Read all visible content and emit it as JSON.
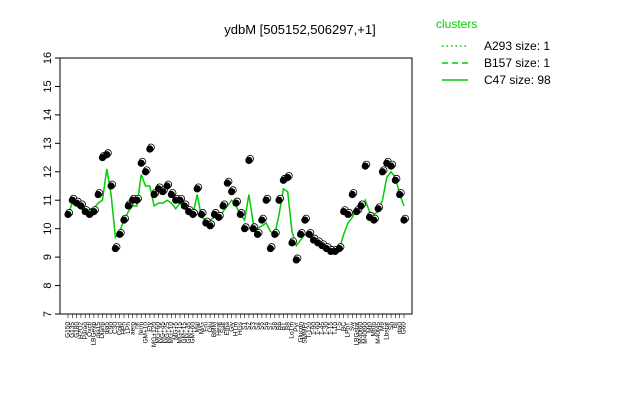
{
  "chart_data": {
    "type": "line",
    "title": "ydbM [505152,506297,+1]",
    "xlabel": "",
    "ylabel": "",
    "ylim": [
      7,
      16
    ],
    "yticks": [
      7,
      8,
      9,
      10,
      11,
      12,
      13,
      14,
      15,
      16
    ],
    "grid": false,
    "legend": {
      "placement": "top-right",
      "title": "clusters",
      "entries": [
        {
          "label": "A293 size: 1",
          "style": "dotted",
          "color": "#00cc00"
        },
        {
          "label": "B157 size: 1",
          "style": "dashed",
          "color": "#00cc00"
        },
        {
          "label": "C47 size: 98",
          "style": "solid",
          "color": "#00cc00"
        }
      ]
    },
    "categories": [
      "G150",
      "G135",
      "G180",
      "H2O2",
      "Paraq",
      "Oxctl",
      "LBGexp",
      "dia15",
      "Diami",
      "dia5",
      "C90",
      "C30",
      "Cold",
      "HPh",
      "LPh",
      "aero",
      "nit",
      "ferm",
      "GM+10",
      "Ery",
      "MG+120",
      "MG+60",
      "MG+45",
      "MG+25",
      "MG+10",
      "MG+5",
      "MG+15",
      "GM+15",
      "GM+45",
      "GM+60",
      "Mal",
      "M/G",
      "Fru",
      "Glu",
      "BMM",
      "Heat",
      "Salt",
      "Etha",
      "Gly",
      "HTm",
      "HGs",
      "S1",
      "S2",
      "S3",
      "S4",
      "S5",
      "S6",
      "S7",
      "S8",
      "B6",
      "BT",
      "B8",
      "LoTm",
      "Pyr",
      "Glucon",
      "SMMPr",
      "T-120",
      "T-90",
      "T-60",
      "T-45",
      "T-30",
      "T-15",
      "T-10",
      "T-5",
      "BC",
      "LPhT",
      "Sw",
      "LBGstat",
      "M40t60",
      "M40t90",
      "Mt0",
      "Mt0n",
      "M40t45",
      "M9",
      "Lbstat",
      "Sh",
      "BI",
      "dia0",
      "G60"
    ],
    "series": [
      {
        "name": "C47 size: 98",
        "type": "line",
        "color": "#00cc00",
        "values": [
          10.5,
          10.9,
          10.8,
          10.7,
          10.6,
          10.7,
          10.7,
          10.9,
          11.0,
          12.1,
          11.2,
          9.7,
          9.9,
          10.3,
          10.6,
          10.8,
          10.8,
          11.9,
          11.5,
          11.5,
          10.8,
          10.9,
          10.9,
          11.0,
          10.9,
          10.7,
          10.9,
          10.7,
          10.6,
          10.5,
          11.2,
          10.4,
          10.3,
          10.3,
          10.4,
          10.3,
          10.6,
          10.8,
          11.0,
          10.8,
          10.5,
          10.3,
          11.2,
          10.2,
          10.0,
          10.1,
          10.2,
          9.9,
          9.8,
          10.5,
          11.4,
          11.3,
          9.9,
          9.4,
          9.6,
          9.8,
          9.7,
          9.6,
          9.5,
          9.5,
          9.4,
          9.4,
          9.3,
          9.3,
          9.8,
          10.2,
          10.4,
          10.7,
          10.6,
          11.0,
          10.6,
          10.5,
          10.6,
          11.0,
          11.8,
          12.0,
          11.8,
          11.2,
          10.8
        ]
      },
      {
        "name": "points",
        "type": "scatter",
        "color": "#000000",
        "values": [
          10.5,
          11.0,
          10.9,
          10.8,
          10.6,
          10.5,
          10.6,
          11.2,
          12.5,
          12.6,
          11.5,
          9.3,
          9.8,
          10.3,
          10.8,
          11.0,
          11.0,
          12.3,
          12.0,
          12.8,
          11.2,
          11.4,
          11.3,
          11.5,
          11.2,
          11.0,
          11.0,
          10.8,
          10.6,
          10.5,
          11.4,
          10.5,
          10.2,
          10.1,
          10.5,
          10.4,
          10.8,
          11.6,
          11.3,
          10.9,
          10.5,
          10.0,
          12.4,
          10.0,
          9.8,
          10.3,
          11.0,
          9.3,
          9.8,
          11.0,
          11.7,
          11.8,
          9.5,
          8.9,
          9.8,
          10.3,
          9.8,
          9.6,
          9.5,
          9.4,
          9.3,
          9.2,
          9.2,
          9.3,
          10.6,
          10.5,
          11.2,
          10.6,
          10.8,
          12.2,
          10.4,
          10.3,
          10.7,
          12.0,
          12.3,
          12.2,
          11.7,
          11.2,
          10.3
        ]
      }
    ]
  }
}
